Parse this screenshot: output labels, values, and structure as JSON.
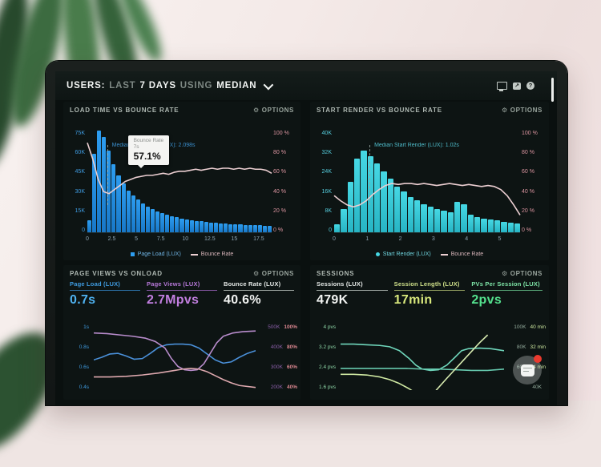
{
  "header": {
    "users": "USERS:",
    "last": "LAST",
    "days": "7 DAYS",
    "using": "USING",
    "median": "MEDIAN",
    "icons": [
      "display",
      "share",
      "help"
    ],
    "share_glyph": "↗",
    "help_glyph": "?"
  },
  "panels": {
    "load_time": {
      "title": "LOAD TIME VS BOUNCE RATE",
      "options_label": "OPTIONS",
      "gear": "⚙",
      "annotation": "Median Page Load (LUX): 2.098s",
      "tooltip": {
        "line1": "Bounce Rate",
        "line2": "7s",
        "value": "57.1%"
      },
      "legend": [
        {
          "label": "Page Load (LUX)"
        },
        {
          "label": "Bounce Rate"
        }
      ]
    },
    "start_render": {
      "title": "START RENDER VS BOUNCE RATE",
      "options_label": "OPTIONS",
      "gear": "⚙",
      "annotation": "Median Start Render (LUX): 1.02s",
      "legend": [
        {
          "label": "Start Render (LUX)"
        },
        {
          "label": "Bounce Rate"
        }
      ]
    },
    "page_views": {
      "title": "PAGE VIEWS VS ONLOAD",
      "options_label": "OPTIONS",
      "gear": "⚙",
      "metrics": [
        {
          "label": "Page Load (LUX)",
          "value": "0.7s"
        },
        {
          "label": "Page Views (LUX)",
          "value": "2.7Mpvs"
        },
        {
          "label": "Bounce Rate (LUX)",
          "value": "40.6%"
        }
      ]
    },
    "sessions": {
      "title": "SESSIONS",
      "options_label": "OPTIONS",
      "gear": "⚙",
      "metrics": [
        {
          "label": "Sessions (LUX)",
          "value": "479K"
        },
        {
          "label": "Session Length (LUX)",
          "value": "17min"
        },
        {
          "label": "PVs Per Session (LUX)",
          "value": "2pvs"
        }
      ]
    }
  },
  "chart_data": [
    {
      "id": "load-time",
      "type": "bar",
      "title": "LOAD TIME VS BOUNCE RATE",
      "bar_series": "Page Load (LUX)",
      "bar_unit": "users",
      "bar_max": 75,
      "bar_values": [
        9,
        58,
        75,
        70,
        60,
        50,
        42,
        36,
        31,
        27,
        24,
        21,
        19,
        17,
        15.5,
        14,
        13,
        12,
        11,
        10.2,
        9.5,
        9,
        8.5,
        8,
        7.6,
        7.2,
        6.9,
        6.6,
        6.3,
        6.1,
        5.9,
        5.7,
        5.5,
        5.3,
        5.2,
        5.1,
        5.0,
        4.9
      ],
      "y_left_ticks": [
        "75K",
        "60K",
        "45K",
        "30K",
        "15K",
        "0"
      ],
      "y_right_ticks": [
        "100 %",
        "80 %",
        "60 %",
        "40 %",
        "20 %",
        "0 %"
      ],
      "x_ticks": [
        "0",
        "2.5",
        "5",
        "7.5",
        "10",
        "12.5",
        "15",
        "17.5"
      ],
      "x_span_frac": 0.93,
      "line_series": "Bounce Rate",
      "line_color": "#eccfd2",
      "line_pct": [
        88,
        72,
        52,
        40,
        38,
        42,
        46,
        50,
        52,
        54,
        55,
        56,
        56,
        57,
        58,
        57,
        59,
        60,
        60,
        61,
        62,
        61,
        62,
        63,
        62,
        63,
        63,
        62,
        63,
        62,
        63,
        62,
        62,
        61,
        58
      ],
      "median_x_frac": 0.107,
      "median_value_s": 2.098
    },
    {
      "id": "start-render",
      "type": "bar",
      "title": "START RENDER VS BOUNCE RATE",
      "bar_series": "Start Render (LUX)",
      "bar_unit": "users",
      "bar_max": 40,
      "bar_values": [
        3,
        9,
        20,
        29,
        32,
        30,
        27,
        24,
        21,
        18,
        16,
        14,
        12.5,
        11,
        10,
        9,
        8.5,
        8,
        12,
        11,
        7,
        6,
        5.5,
        5,
        4.6,
        4.2,
        3.9,
        3.6
      ],
      "y_left_ticks": [
        "40K",
        "32K",
        "24K",
        "16K",
        "8K",
        "0"
      ],
      "y_right_ticks": [
        "100 %",
        "80 %",
        "60 %",
        "40 %",
        "20 %",
        "0 %"
      ],
      "x_ticks": [
        "0",
        "1",
        "2",
        "3",
        "4",
        "5"
      ],
      "x_span_frac": 0.89,
      "line_series": "Bounce Rate",
      "line_color": "#eccfd2",
      "line_pct": [
        36,
        31,
        27,
        25,
        27,
        31,
        37,
        42,
        46,
        48,
        47,
        48,
        48,
        47,
        48,
        47,
        46,
        47,
        48,
        47,
        46,
        47,
        46,
        45,
        46,
        45,
        42,
        36,
        27,
        17
      ],
      "median_x_frac": 0.19,
      "median_value_s": 1.02
    },
    {
      "id": "page-views",
      "type": "line",
      "title": "PAGE VIEWS VS ONLOAD",
      "y_left_ticks": [
        "1s",
        "0.8s",
        "0.6s",
        "0.4s"
      ],
      "y_right_pairs": [
        [
          "500K",
          "100%"
        ],
        [
          "400K",
          "80%"
        ],
        [
          "300K",
          "60%"
        ],
        [
          "200K",
          "40%"
        ]
      ],
      "series": [
        {
          "name": "Page Load",
          "color": "#4a90d9",
          "points": [
            [
              0,
              0.54
            ],
            [
              0.05,
              0.5
            ],
            [
              0.1,
              0.45
            ],
            [
              0.15,
              0.44
            ],
            [
              0.2,
              0.48
            ],
            [
              0.25,
              0.53
            ],
            [
              0.3,
              0.52
            ],
            [
              0.35,
              0.44
            ],
            [
              0.4,
              0.35
            ],
            [
              0.45,
              0.31
            ],
            [
              0.5,
              0.3
            ],
            [
              0.55,
              0.3
            ],
            [
              0.6,
              0.31
            ],
            [
              0.65,
              0.36
            ],
            [
              0.7,
              0.45
            ],
            [
              0.75,
              0.54
            ],
            [
              0.8,
              0.59
            ],
            [
              0.85,
              0.57
            ],
            [
              0.9,
              0.5
            ],
            [
              0.95,
              0.44
            ],
            [
              1,
              0.4
            ]
          ]
        },
        {
          "name": "Page Views",
          "color": "#b88ccc",
          "points": [
            [
              0,
              0.13
            ],
            [
              0.08,
              0.14
            ],
            [
              0.16,
              0.16
            ],
            [
              0.24,
              0.18
            ],
            [
              0.32,
              0.21
            ],
            [
              0.38,
              0.26
            ],
            [
              0.44,
              0.36
            ],
            [
              0.48,
              0.52
            ],
            [
              0.52,
              0.64
            ],
            [
              0.56,
              0.69
            ],
            [
              0.6,
              0.7
            ],
            [
              0.64,
              0.69
            ],
            [
              0.68,
              0.6
            ],
            [
              0.72,
              0.44
            ],
            [
              0.76,
              0.28
            ],
            [
              0.8,
              0.18
            ],
            [
              0.86,
              0.13
            ],
            [
              0.92,
              0.11
            ],
            [
              1,
              0.1
            ]
          ]
        },
        {
          "name": "Bounce Rate",
          "color": "#dda8ae",
          "points": [
            [
              0,
              0.8
            ],
            [
              0.1,
              0.8
            ],
            [
              0.2,
              0.79
            ],
            [
              0.3,
              0.77
            ],
            [
              0.4,
              0.74
            ],
            [
              0.5,
              0.7
            ],
            [
              0.55,
              0.68
            ],
            [
              0.6,
              0.67
            ],
            [
              0.65,
              0.68
            ],
            [
              0.7,
              0.72
            ],
            [
              0.75,
              0.78
            ],
            [
              0.8,
              0.84
            ],
            [
              0.85,
              0.89
            ],
            [
              0.9,
              0.93
            ],
            [
              1,
              0.96
            ]
          ]
        }
      ]
    },
    {
      "id": "sessions",
      "type": "line",
      "title": "SESSIONS",
      "y_left_ticks": [
        "4 pvs",
        "3.2 pvs",
        "2.4 pvs",
        "1.6 pvs"
      ],
      "y_right_pairs": [
        [
          "100K",
          "40 min"
        ],
        [
          "80K",
          "32 min"
        ],
        [
          "60K",
          "24 min"
        ],
        [
          "40K",
          ""
        ]
      ],
      "series": [
        {
          "name": "PVs Per Session",
          "color": "#6fd6bb",
          "points": [
            [
              0,
              0.3
            ],
            [
              0.08,
              0.3
            ],
            [
              0.16,
              0.31
            ],
            [
              0.24,
              0.32
            ],
            [
              0.3,
              0.34
            ],
            [
              0.36,
              0.4
            ],
            [
              0.42,
              0.52
            ],
            [
              0.46,
              0.62
            ],
            [
              0.5,
              0.68
            ],
            [
              0.55,
              0.7
            ],
            [
              0.6,
              0.69
            ],
            [
              0.65,
              0.62
            ],
            [
              0.7,
              0.5
            ],
            [
              0.74,
              0.4
            ],
            [
              0.78,
              0.37
            ],
            [
              0.85,
              0.36
            ],
            [
              0.92,
              0.37
            ],
            [
              1,
              0.4
            ]
          ]
        },
        {
          "name": "Sessions",
          "color": "#66c9ae",
          "points": [
            [
              0,
              0.67
            ],
            [
              0.1,
              0.67
            ],
            [
              0.2,
              0.67
            ],
            [
              0.3,
              0.67
            ],
            [
              0.4,
              0.67
            ],
            [
              0.5,
              0.68
            ],
            [
              0.6,
              0.68
            ],
            [
              0.7,
              0.69
            ],
            [
              0.8,
              0.7
            ],
            [
              0.9,
              0.7
            ],
            [
              1,
              0.68
            ]
          ]
        },
        {
          "name": "Session Length A",
          "color": "#cfe8a2",
          "points": [
            [
              0,
              0.76
            ],
            [
              0.08,
              0.76
            ],
            [
              0.16,
              0.77
            ],
            [
              0.24,
              0.8
            ],
            [
              0.3,
              0.84
            ],
            [
              0.36,
              0.9
            ],
            [
              0.42,
              0.98
            ],
            [
              0.48,
              1.08
            ]
          ]
        },
        {
          "name": "Session Length B",
          "color": "#d6eaaf",
          "points": [
            [
              0.55,
              1.1
            ],
            [
              0.65,
              0.82
            ],
            [
              0.75,
              0.55
            ],
            [
              0.85,
              0.28
            ],
            [
              0.9,
              0.16
            ]
          ]
        }
      ]
    }
  ]
}
